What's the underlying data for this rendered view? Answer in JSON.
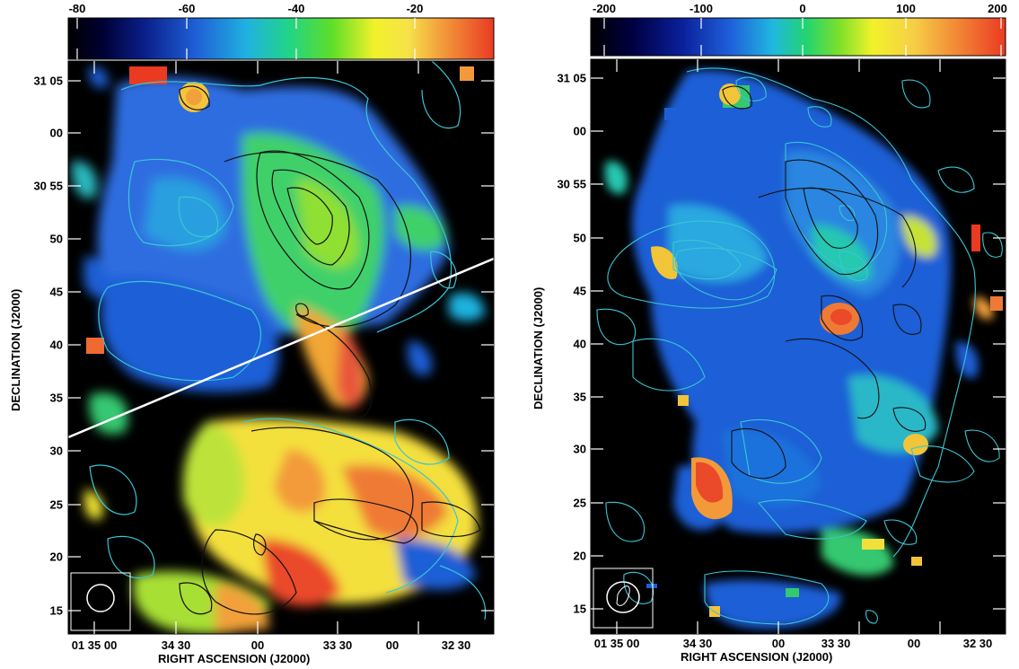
{
  "panels": [
    {
      "colorbar_ticks": [
        "-80",
        "-60",
        "-40",
        "-20"
      ],
      "dec_ticks": [
        "31 05",
        "00",
        "30 55",
        "50",
        "45",
        "40",
        "35",
        "30",
        "25",
        "20",
        "15"
      ],
      "ra_ticks": [
        "01 35 00",
        "34 30",
        "00",
        "33 30",
        "00",
        "32 30"
      ],
      "xlabel": "RIGHT ASCENSION (J2000)",
      "ylabel": "DECLINATION (J2000)"
    },
    {
      "colorbar_ticks": [
        "-200",
        "-100",
        "0",
        "100",
        "200"
      ],
      "dec_ticks": [
        "31 05",
        "00",
        "30 55",
        "50",
        "45",
        "40",
        "35",
        "30",
        "25",
        "20",
        "15"
      ],
      "ra_ticks": [
        "01 35 00",
        "34 30",
        "00",
        "33 30",
        "00",
        "32 30"
      ],
      "xlabel": "RIGHT ASCENSION (J2000)",
      "ylabel": "DECLINATION (J2000)"
    }
  ],
  "colors": {
    "background": "#000000",
    "contour_cyan": "#39c6d6",
    "contour_black": "#111111",
    "slice_line": "#ffffff"
  }
}
